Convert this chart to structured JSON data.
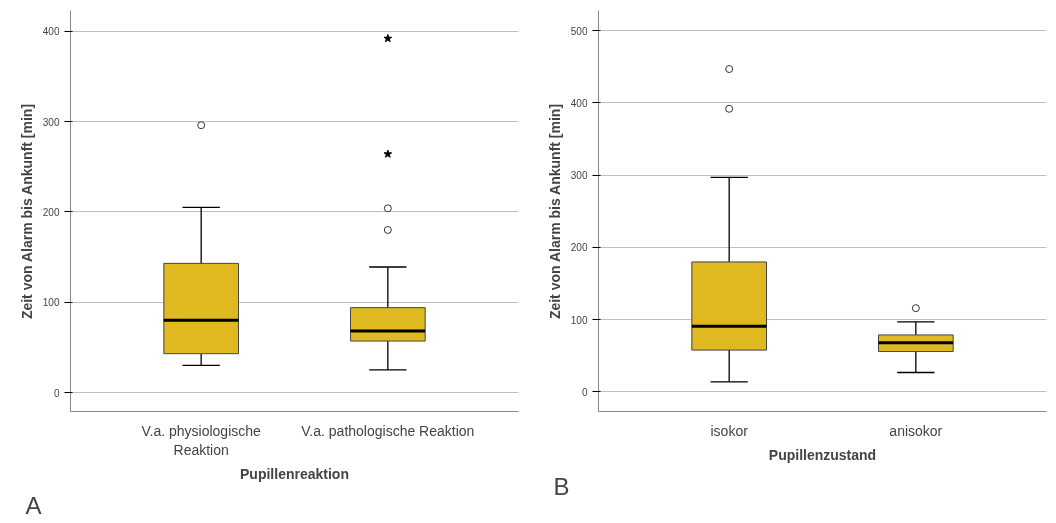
{
  "chart_data": [
    {
      "type": "box",
      "xlabel": "Pupillenreaktion",
      "ylabel": "Zeit von Alarm bis Ankunft [min]",
      "categories": [
        "V.a. physiologische\nReaktion",
        "V.a. pathologische Reaktion"
      ],
      "color": "#e0b820",
      "boxes": [
        {
          "low": 30,
          "q1": 43,
          "median": 80,
          "q3": 143,
          "high": 205,
          "outliers": [
            296
          ]
        },
        {
          "low": 25,
          "q1": 57,
          "median": 68,
          "q3": 94,
          "high": 139,
          "outliers": [
            180,
            204,
            264,
            392
          ]
        }
      ],
      "ylim": [
        -21,
        423
      ],
      "yticks": [
        0,
        100,
        200,
        300,
        400
      ],
      "grid": "y",
      "annotations": [
        "A"
      ]
    },
    {
      "type": "box",
      "xlabel": "Pupillenzustand",
      "ylabel": "Zeit von Alarm bis Ankunft [min]",
      "categories": [
        "isokor",
        "anisokor"
      ],
      "color": "#e0b820",
      "boxes": [
        {
          "low": 14,
          "q1": 58,
          "median": 91,
          "q3": 180,
          "high": 297,
          "outliers": [
            392,
            447
          ]
        },
        {
          "low": 27,
          "q1": 56,
          "median": 68,
          "q3": 79,
          "high": 97,
          "outliers": [
            116
          ]
        }
      ],
      "ylim": [
        -27,
        528
      ],
      "yticks": [
        0,
        100,
        200,
        300,
        400,
        500
      ],
      "grid": "y",
      "annotations": [
        "B"
      ]
    }
  ]
}
